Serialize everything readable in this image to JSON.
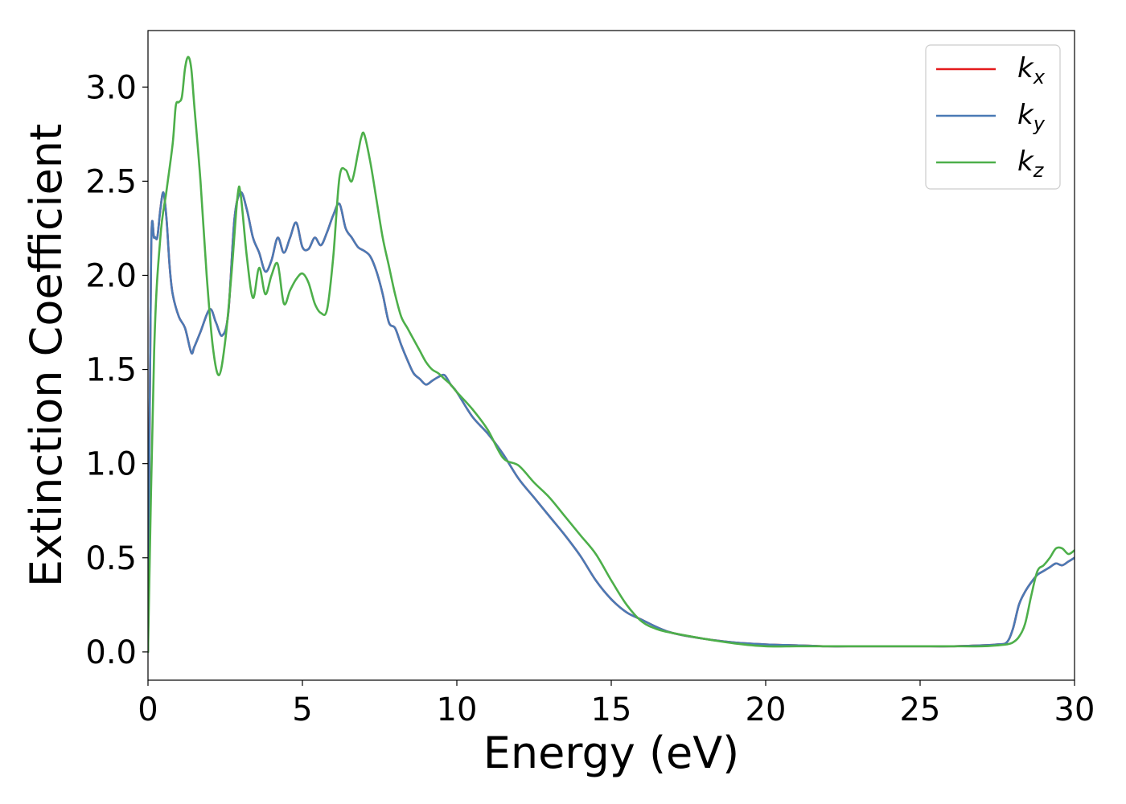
{
  "chart_data": {
    "type": "line",
    "title": "",
    "xlabel": "Energy (eV)",
    "ylabel": "Extinction Coefficient",
    "xlim": [
      0,
      30
    ],
    "ylim": [
      -0.15,
      3.3
    ],
    "xticks": [
      "0",
      "5",
      "10",
      "15",
      "20",
      "25",
      "30"
    ],
    "yticks": [
      "0.0",
      "0.5",
      "1.0",
      "1.5",
      "2.0",
      "2.5",
      "3.0"
    ],
    "grid": false,
    "legend_position": "top-right",
    "series": [
      {
        "name": "kx",
        "label_base": "k",
        "label_sub": "x",
        "color": "#e41a1c",
        "x": [
          0,
          0.1,
          0.2,
          0.3,
          0.4,
          0.5,
          0.6,
          0.7,
          0.8,
          1.0,
          1.2,
          1.4,
          1.5,
          1.7,
          2.0,
          2.2,
          2.4,
          2.6,
          2.8,
          3.0,
          3.2,
          3.4,
          3.6,
          3.8,
          4.0,
          4.2,
          4.4,
          4.6,
          4.8,
          5.0,
          5.2,
          5.4,
          5.6,
          5.8,
          6.0,
          6.2,
          6.4,
          6.6,
          6.8,
          7.0,
          7.2,
          7.4,
          7.6,
          7.8,
          8.0,
          8.2,
          8.4,
          8.6,
          8.8,
          9.0,
          9.2,
          9.4,
          9.6,
          9.8,
          10.0,
          10.5,
          11.0,
          11.5,
          12.0,
          12.5,
          13.0,
          13.5,
          14.0,
          14.5,
          15.0,
          15.5,
          16.0,
          16.5,
          17.0,
          18.0,
          19.0,
          20.0,
          21.0,
          22.0,
          23.0,
          24.0,
          25.0,
          26.0,
          27.0,
          27.5,
          27.8,
          28.0,
          28.2,
          28.4,
          28.6,
          28.8,
          29.0,
          29.2,
          29.4,
          29.6,
          29.8,
          30.0
        ],
        "y": [
          0.0,
          2.1,
          2.2,
          2.2,
          2.35,
          2.44,
          2.3,
          2.05,
          1.9,
          1.78,
          1.72,
          1.59,
          1.62,
          1.7,
          1.82,
          1.75,
          1.68,
          1.8,
          2.3,
          2.44,
          2.35,
          2.2,
          2.12,
          2.02,
          2.08,
          2.2,
          2.12,
          2.2,
          2.28,
          2.15,
          2.14,
          2.2,
          2.16,
          2.23,
          2.32,
          2.38,
          2.25,
          2.2,
          2.15,
          2.13,
          2.1,
          2.02,
          1.9,
          1.75,
          1.72,
          1.63,
          1.55,
          1.48,
          1.45,
          1.42,
          1.44,
          1.46,
          1.47,
          1.42,
          1.38,
          1.25,
          1.16,
          1.05,
          0.92,
          0.82,
          0.72,
          0.62,
          0.51,
          0.38,
          0.28,
          0.21,
          0.17,
          0.13,
          0.1,
          0.07,
          0.05,
          0.04,
          0.035,
          0.03,
          0.03,
          0.03,
          0.03,
          0.03,
          0.035,
          0.04,
          0.05,
          0.12,
          0.25,
          0.32,
          0.37,
          0.41,
          0.43,
          0.45,
          0.47,
          0.46,
          0.48,
          0.5
        ]
      },
      {
        "name": "ky",
        "label_base": "k",
        "label_sub": "y",
        "color": "#4a7ab5",
        "x": [
          0,
          0.1,
          0.2,
          0.3,
          0.4,
          0.5,
          0.6,
          0.7,
          0.8,
          1.0,
          1.2,
          1.4,
          1.5,
          1.7,
          2.0,
          2.2,
          2.4,
          2.6,
          2.8,
          3.0,
          3.2,
          3.4,
          3.6,
          3.8,
          4.0,
          4.2,
          4.4,
          4.6,
          4.8,
          5.0,
          5.2,
          5.4,
          5.6,
          5.8,
          6.0,
          6.2,
          6.4,
          6.6,
          6.8,
          7.0,
          7.2,
          7.4,
          7.6,
          7.8,
          8.0,
          8.2,
          8.4,
          8.6,
          8.8,
          9.0,
          9.2,
          9.4,
          9.6,
          9.8,
          10.0,
          10.5,
          11.0,
          11.5,
          12.0,
          12.5,
          13.0,
          13.5,
          14.0,
          14.5,
          15.0,
          15.5,
          16.0,
          16.5,
          17.0,
          18.0,
          19.0,
          20.0,
          21.0,
          22.0,
          23.0,
          24.0,
          25.0,
          26.0,
          27.0,
          27.5,
          27.8,
          28.0,
          28.2,
          28.4,
          28.6,
          28.8,
          29.0,
          29.2,
          29.4,
          29.6,
          29.8,
          30.0
        ],
        "y": [
          0.0,
          2.1,
          2.2,
          2.2,
          2.35,
          2.44,
          2.3,
          2.05,
          1.9,
          1.78,
          1.72,
          1.59,
          1.62,
          1.7,
          1.82,
          1.75,
          1.68,
          1.8,
          2.3,
          2.44,
          2.35,
          2.2,
          2.12,
          2.02,
          2.08,
          2.2,
          2.12,
          2.2,
          2.28,
          2.15,
          2.14,
          2.2,
          2.16,
          2.23,
          2.32,
          2.38,
          2.25,
          2.2,
          2.15,
          2.13,
          2.1,
          2.02,
          1.9,
          1.75,
          1.72,
          1.63,
          1.55,
          1.48,
          1.45,
          1.42,
          1.44,
          1.46,
          1.47,
          1.42,
          1.38,
          1.25,
          1.16,
          1.05,
          0.92,
          0.82,
          0.72,
          0.62,
          0.51,
          0.38,
          0.28,
          0.21,
          0.17,
          0.13,
          0.1,
          0.07,
          0.05,
          0.04,
          0.035,
          0.03,
          0.03,
          0.03,
          0.03,
          0.03,
          0.035,
          0.04,
          0.05,
          0.12,
          0.25,
          0.32,
          0.37,
          0.41,
          0.43,
          0.45,
          0.47,
          0.46,
          0.48,
          0.5
        ]
      },
      {
        "name": "kz",
        "label_base": "k",
        "label_sub": "z",
        "color": "#4daf4a",
        "x": [
          0,
          0.2,
          0.4,
          0.6,
          0.8,
          0.9,
          1.0,
          1.1,
          1.2,
          1.3,
          1.4,
          1.5,
          1.7,
          1.9,
          2.1,
          2.3,
          2.5,
          2.7,
          2.9,
          3.0,
          3.2,
          3.4,
          3.6,
          3.8,
          4.0,
          4.2,
          4.4,
          4.6,
          4.8,
          5.0,
          5.2,
          5.4,
          5.6,
          5.8,
          6.0,
          6.2,
          6.4,
          6.6,
          6.8,
          6.9,
          7.0,
          7.2,
          7.4,
          7.6,
          7.8,
          8.0,
          8.2,
          8.4,
          8.6,
          8.8,
          9.0,
          9.2,
          9.4,
          9.6,
          9.8,
          10.0,
          10.5,
          11.0,
          11.5,
          12.0,
          12.5,
          13.0,
          13.5,
          14.0,
          14.5,
          15.0,
          15.5,
          16.0,
          16.5,
          17.0,
          18.0,
          19.0,
          20.0,
          21.0,
          22.0,
          23.0,
          24.0,
          25.0,
          26.0,
          27.0,
          27.5,
          27.8,
          28.0,
          28.2,
          28.4,
          28.6,
          28.8,
          29.0,
          29.2,
          29.4,
          29.6,
          29.8,
          30.0
        ],
        "y": [
          0.0,
          1.6,
          2.2,
          2.45,
          2.7,
          2.9,
          2.92,
          2.95,
          3.1,
          3.16,
          3.1,
          2.9,
          2.5,
          2.0,
          1.62,
          1.47,
          1.65,
          2.0,
          2.42,
          2.43,
          2.1,
          1.88,
          2.04,
          1.9,
          2.0,
          2.06,
          1.85,
          1.92,
          1.98,
          2.01,
          1.96,
          1.85,
          1.8,
          1.82,
          2.1,
          2.52,
          2.56,
          2.5,
          2.65,
          2.73,
          2.75,
          2.6,
          2.4,
          2.2,
          2.05,
          1.9,
          1.78,
          1.72,
          1.66,
          1.6,
          1.54,
          1.5,
          1.48,
          1.45,
          1.42,
          1.38,
          1.29,
          1.18,
          1.03,
          0.99,
          0.9,
          0.82,
          0.72,
          0.62,
          0.52,
          0.38,
          0.25,
          0.16,
          0.12,
          0.1,
          0.07,
          0.045,
          0.03,
          0.03,
          0.03,
          0.03,
          0.03,
          0.03,
          0.03,
          0.03,
          0.035,
          0.04,
          0.05,
          0.08,
          0.15,
          0.3,
          0.43,
          0.46,
          0.5,
          0.55,
          0.55,
          0.52,
          0.54
        ]
      }
    ]
  }
}
